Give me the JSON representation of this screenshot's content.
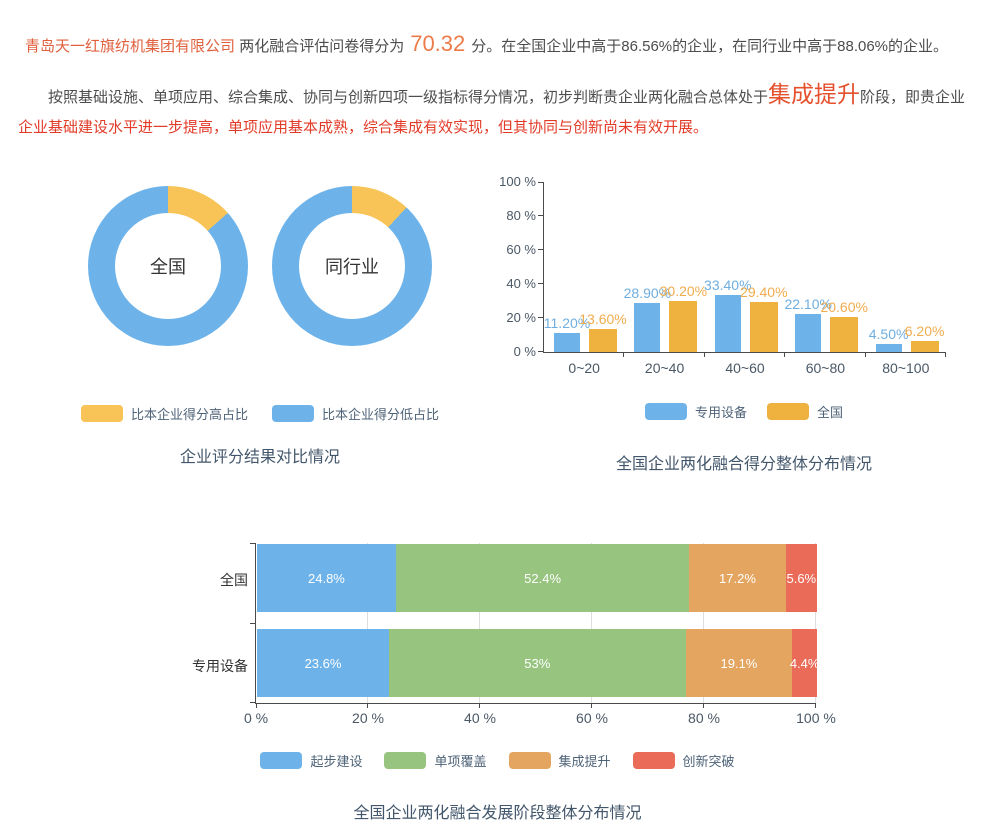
{
  "colors": {
    "blue": "#6DB3EA",
    "donut_yellow": "#F8C357",
    "bar_yellow": "#EFB23F",
    "green": "#97C47E",
    "orange": "#E3A55F",
    "red": "#EA6B58",
    "bar_label_blue": "#6FAEDE",
    "bar_label_yellow": "#F0AC4E",
    "axis_line": "#4A4A4A",
    "gridline": "#DDDDDD",
    "title_text": "#42566B",
    "highlight_red": "#E23B28",
    "company_orange": "#E0603E",
    "score_orange": "#ED7B49",
    "stage_orange": "#E5512D"
  },
  "intro": {
    "company": "青岛天一红旗纺机集团有限公司",
    "score_prefix": "两化融合评估问卷得分为",
    "score": "70.32",
    "score_suffix": "分。在全国企业中高于86.56%的企业，在同行业中高于88.06%的企业。",
    "para2_part1": "按照基础设施、单项应用、综合集成、协同与创新四项一级指标得分情况，初步判断贵企业两化融合总体处于",
    "para2_stage": "集成提升",
    "para2_part2": "阶段，即贵企业",
    "para2_red": "企业基础建设水平进一步提高，单项应用基本成熟，综合集成有效实现，但其协同与创新尚未有效开展。"
  },
  "chart_data": [
    {
      "type": "pie",
      "variant": "donut-pair",
      "title": "企业评分结果对比情况",
      "legend": [
        {
          "label": "比本企业得分高占比",
          "color_key": "donut_yellow"
        },
        {
          "label": "比本企业得分低占比",
          "color_key": "blue"
        }
      ],
      "donuts": [
        {
          "label": "全国",
          "slices": [
            {
              "name": "比本企业得分高占比",
              "value": 13.44
            },
            {
              "name": "比本企业得分低占比",
              "value": 86.56
            }
          ]
        },
        {
          "label": "同行业",
          "slices": [
            {
              "name": "比本企业得分高占比",
              "value": 11.94
            },
            {
              "name": "比本企业得分低占比",
              "value": 88.06
            }
          ]
        }
      ]
    },
    {
      "type": "bar",
      "title": "全国企业两化融合得分整体分布情况",
      "categories": [
        "0~20",
        "20~40",
        "40~60",
        "60~80",
        "80~100"
      ],
      "series": [
        {
          "name": "专用设备",
          "color_key": "blue",
          "label_color_key": "bar_label_blue",
          "values": [
            11.2,
            28.9,
            33.4,
            22.1,
            4.5
          ],
          "labels": [
            "11.20%",
            "28.90%",
            "33.40%",
            "22.10%",
            "4.50%"
          ]
        },
        {
          "name": "全国",
          "color_key": "bar_yellow",
          "label_color_key": "bar_label_yellow",
          "values": [
            13.6,
            30.2,
            29.4,
            20.6,
            6.2
          ],
          "labels": [
            "13.60%",
            "30.20%",
            "29.40%",
            "20.60%",
            "6.20%"
          ]
        }
      ],
      "ylim": [
        0,
        100
      ],
      "yticks": [
        "0 %",
        "20 %",
        "40 %",
        "60 %",
        "80 %",
        "100 %"
      ],
      "grid": false,
      "legend_position": "bottom"
    },
    {
      "type": "bar-stacked-horizontal",
      "title": "全国企业两化融合发展阶段整体分布情况",
      "categories": [
        "全国",
        "专用设备"
      ],
      "series": [
        {
          "name": "起步建设",
          "color_key": "blue",
          "values": [
            24.8,
            23.6
          ],
          "labels": [
            "24.8%",
            "23.6%"
          ]
        },
        {
          "name": "单项覆盖",
          "color_key": "green",
          "values": [
            52.4,
            53
          ],
          "labels": [
            "52.4%",
            "53%"
          ]
        },
        {
          "name": "集成提升",
          "color_key": "orange",
          "values": [
            17.2,
            19.1
          ],
          "labels": [
            "17.2%",
            "19.1%"
          ]
        },
        {
          "name": "创新突破",
          "color_key": "red",
          "values": [
            5.6,
            4.4
          ],
          "labels": [
            "5.6%",
            "4.4%"
          ]
        }
      ],
      "xlim": [
        0,
        100
      ],
      "xticks": [
        "0 %",
        "20 %",
        "40 %",
        "60 %",
        "80 %",
        "100 %"
      ],
      "grid": true,
      "legend_position": "bottom"
    }
  ]
}
